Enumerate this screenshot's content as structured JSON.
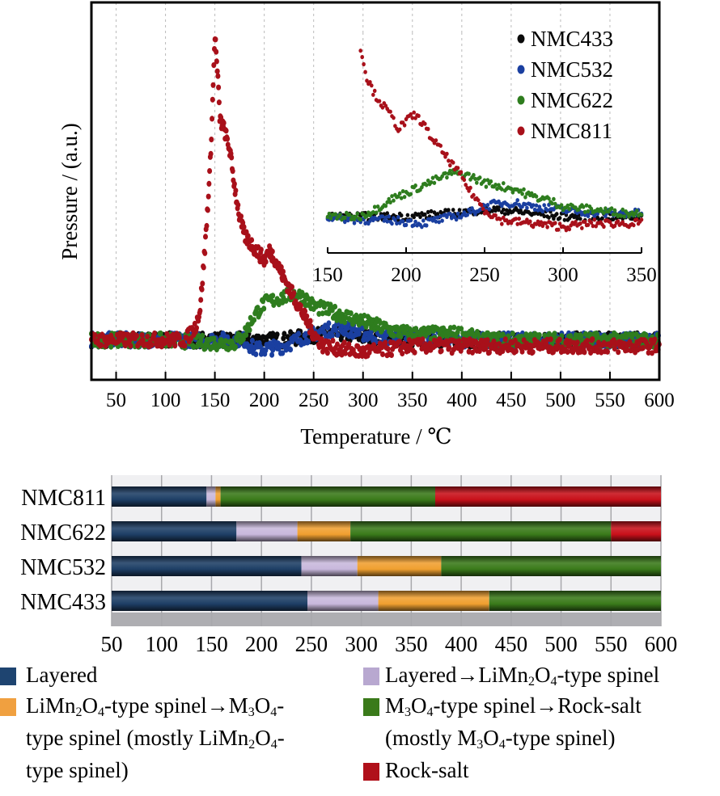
{
  "chart_data": [
    {
      "type": "scatter",
      "title": "",
      "xlabel": "Temperature / ℃",
      "ylabel": "Pressure / (a.u.)",
      "xlim": [
        25,
        600
      ],
      "ylim": [
        -13,
        110
      ],
      "xticks": [
        50,
        100,
        150,
        200,
        250,
        300,
        350,
        400,
        450,
        500,
        550,
        600
      ],
      "grid": "vertical dashed",
      "legend_position": "top-right",
      "series": [
        {
          "name": "NMC433",
          "color": "#0a0a0a",
          "x": [
            25,
            100,
            200,
            220,
            240,
            260,
            280,
            300,
            350,
            600
          ],
          "y": [
            0,
            0,
            0,
            0,
            1,
            2,
            2,
            1,
            0,
            0
          ]
        },
        {
          "name": "NMC532",
          "color": "#1a3fa0",
          "x": [
            25,
            100,
            180,
            190,
            200,
            220,
            240,
            260,
            280,
            300,
            320,
            350,
            400,
            600
          ],
          "y": [
            0,
            0,
            0,
            -3,
            -3,
            -2,
            1,
            3,
            4,
            2,
            1,
            1,
            0,
            0
          ]
        },
        {
          "name": "NMC622",
          "color": "#2e7d1e",
          "x": [
            25,
            100,
            150,
            170,
            180,
            190,
            200,
            210,
            220,
            230,
            240,
            250,
            270,
            300,
            330,
            350,
            380,
            400,
            420,
            600
          ],
          "y": [
            0,
            0,
            -1,
            -1,
            2,
            8,
            12,
            13,
            14,
            15,
            14,
            11,
            9,
            6,
            3,
            2,
            2,
            2,
            0,
            0
          ]
        },
        {
          "name": "NMC811",
          "color": "#a8101a",
          "x": [
            25,
            120,
            125,
            130,
            135,
            140,
            145,
            148,
            150,
            153,
            155,
            160,
            165,
            170,
            175,
            180,
            190,
            200,
            205,
            210,
            220,
            230,
            240,
            250,
            260,
            280,
            300,
            350,
            400,
            600
          ],
          "y": [
            0,
            0,
            2,
            4,
            10,
            30,
            55,
            80,
            100,
            85,
            72,
            68,
            62,
            50,
            40,
            34,
            30,
            26,
            29,
            27,
            20,
            14,
            8,
            2,
            -2,
            -3,
            -4,
            -2,
            -2,
            -2
          ]
        }
      ],
      "inset": {
        "xlim": [
          150,
          350
        ],
        "xticks": [
          150,
          200,
          250,
          300,
          350
        ],
        "ylim": [
          -12,
          105
        ],
        "series": [
          {
            "name": "NMC433",
            "x": [
              150,
              200,
              230,
              250,
              260,
              280,
              300,
              350
            ],
            "y": [
              0,
              0,
              2,
              4,
              4,
              2,
              0,
              0
            ]
          },
          {
            "name": "NMC532",
            "x": [
              150,
              170,
              190,
              210,
              220,
              240,
              250,
              260,
              270,
              280,
              300,
              320,
              350
            ],
            "y": [
              0,
              -2,
              -2,
              -4,
              -2,
              2,
              6,
              8,
              8,
              6,
              4,
              2,
              2
            ]
          },
          {
            "name": "NMC622",
            "x": [
              150,
              170,
              180,
              190,
              200,
              210,
              220,
              230,
              240,
              250,
              260,
              270,
              280,
              290,
              300,
              320,
              340,
              350
            ],
            "y": [
              0,
              0,
              4,
              10,
              14,
              18,
              22,
              26,
              24,
              20,
              18,
              16,
              12,
              10,
              6,
              4,
              2,
              2
            ]
          },
          {
            "name": "NMC811",
            "x": [
              171,
              173,
              175,
              180,
              185,
              190,
              195,
              200,
              205,
              210,
              215,
              220,
              225,
              230,
              235,
              240,
              245,
              250,
              260,
              280,
              300,
              320,
              350
            ],
            "y": [
              100,
              90,
              82,
              72,
              66,
              60,
              52,
              56,
              60,
              56,
              48,
              42,
              36,
              30,
              24,
              16,
              10,
              4,
              -2,
              -4,
              -6,
              -4,
              -4
            ]
          }
        ]
      }
    },
    {
      "type": "bar",
      "orientation": "horizontal-stacked",
      "title": "",
      "xlim": [
        50,
        600
      ],
      "xticks": [
        50,
        100,
        150,
        200,
        250,
        300,
        350,
        400,
        450,
        500,
        550,
        600
      ],
      "grid": "vertical",
      "categories": [
        "NMC811",
        "NMC622",
        "NMC532",
        "NMC433"
      ],
      "phases": [
        {
          "name": "Layered",
          "color": "#1e3f66"
        },
        {
          "name": "Layered→LiMn2O4-type spinel",
          "color": "#c8b8dc"
        },
        {
          "name": "LiMn2O4-type spinel→M3O4-type spinel (mostly LiMn2O4-type spinel)",
          "color": "#f0a030"
        },
        {
          "name": "M3O4-type spinel→Rock-salt (mostly M3O4-type spinel)",
          "color": "#3a7a1a"
        },
        {
          "name": "Rock-salt",
          "color": "#c8101a"
        }
      ],
      "segments": {
        "NMC811": [
          [
            50,
            145
          ],
          [
            145,
            154
          ],
          [
            154,
            159
          ],
          [
            159,
            374
          ],
          [
            374,
            600
          ]
        ],
        "NMC622": [
          [
            50,
            175
          ],
          [
            175,
            236
          ],
          [
            236,
            289
          ],
          [
            289,
            550
          ],
          [
            550,
            600
          ]
        ],
        "NMC532": [
          [
            50,
            240
          ],
          [
            240,
            296
          ],
          [
            296,
            380
          ],
          [
            380,
            600
          ],
          null
        ],
        "NMC433": [
          [
            50,
            246
          ],
          [
            246,
            317
          ],
          [
            317,
            428
          ],
          [
            428,
            600
          ],
          null
        ]
      }
    }
  ],
  "legend_bottom": [
    {
      "key": "layered",
      "color": "#1e4470",
      "lines": [
        [
          "Layered"
        ]
      ]
    },
    {
      "key": "layered-to-limn2o4",
      "color": "#b8a8d0",
      "lines": [
        [
          "Layered→LiMn",
          "2",
          "O",
          "4",
          "-type spinel"
        ]
      ]
    },
    {
      "key": "limn2o4-to-m3o4",
      "color": "#f0a040",
      "lines": [
        [
          "LiMn",
          "2",
          "O",
          "4",
          "-type spinel→M",
          "3",
          "O",
          "4",
          "-"
        ],
        [
          "type spinel (mostly LiMn",
          "2",
          "O",
          "4",
          "-"
        ],
        [
          "type spinel)"
        ]
      ]
    },
    {
      "key": "m3o4-to-rocksalt",
      "color": "#3a7a1a",
      "lines": [
        [
          "M",
          "3",
          "O",
          "4",
          "-type spinel→Rock-salt"
        ],
        [
          "(mostly M",
          "3",
          "O",
          "4",
          "-type spinel)"
        ]
      ]
    },
    {
      "key": "rock-salt",
      "color": "#b0101a",
      "lines": [
        [
          "Rock-salt"
        ]
      ]
    }
  ]
}
